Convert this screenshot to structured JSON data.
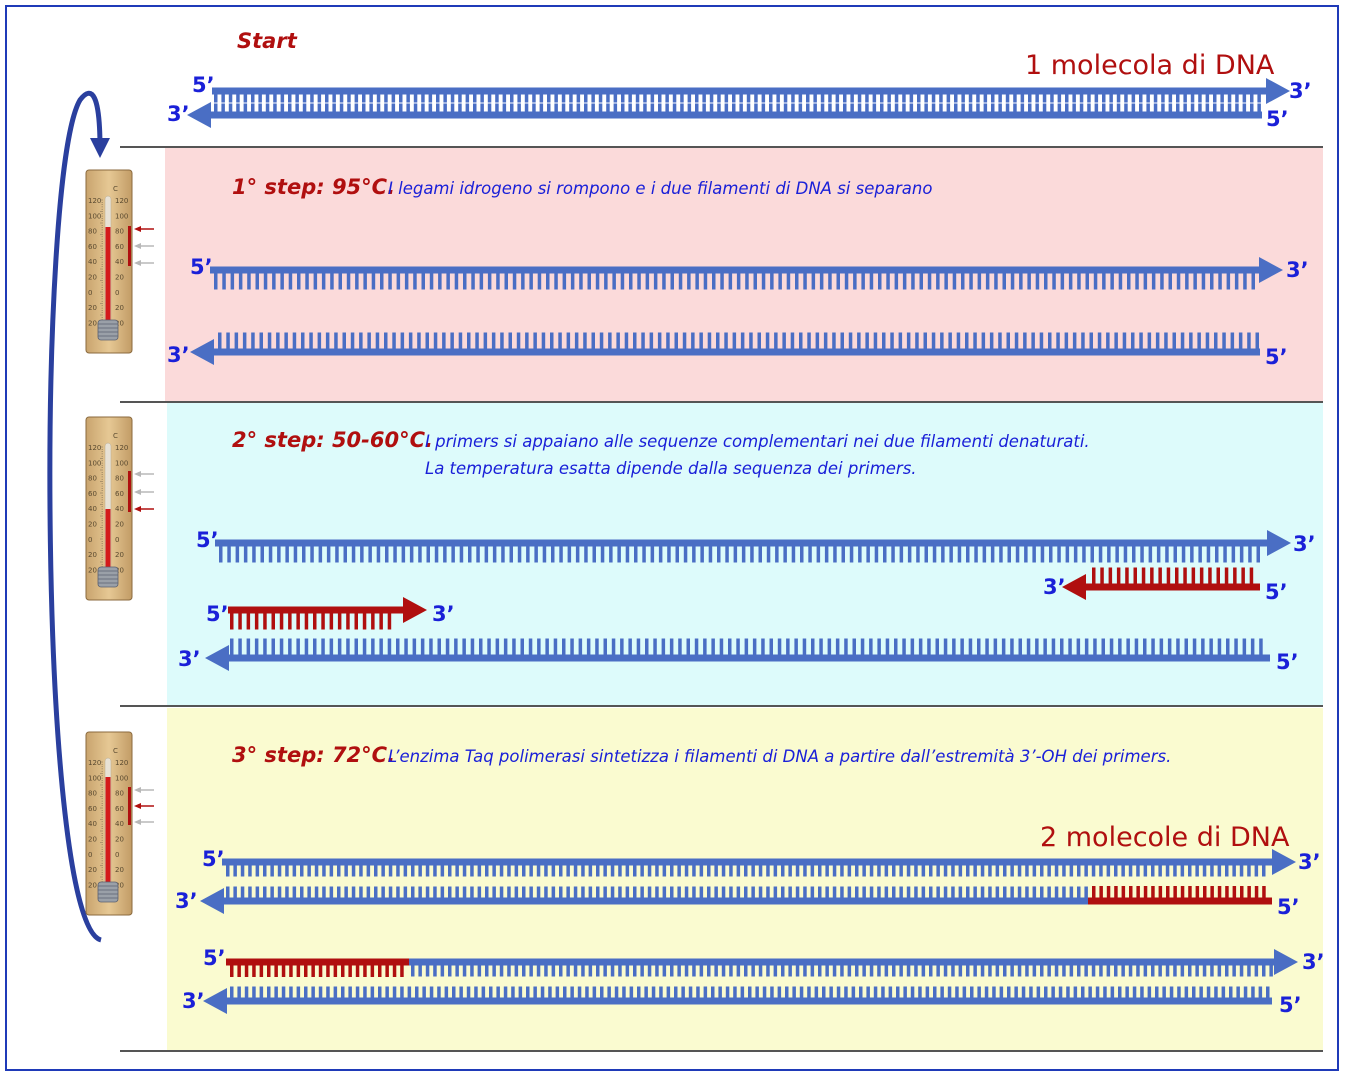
{
  "start_label": "Start",
  "molecule_labels": {
    "one": "1 molecola di DNA",
    "two": "2 molecole di DNA"
  },
  "end_labels": {
    "five_prime": "5’",
    "three_prime": "3’"
  },
  "steps": [
    {
      "title": "1° step: 95°C.",
      "description": [
        "I legami idrogeno si rompono e i due filamenti di DNA si separano"
      ]
    },
    {
      "title": "2° step: 50-60°C.",
      "description": [
        "I primers si appaiano alle sequenze complementari nei due filamenti denaturati.",
        "La temperatura esatta dipende dalla sequenza dei primers."
      ]
    },
    {
      "title": "3° step: 72°C.",
      "description": [
        "L’enzima Taq polimerasi sintetizza i filamenti di DNA a partire dall’estremità 3’-OH dei primers."
      ]
    }
  ],
  "thermometer": {
    "unit": "C",
    "scale_left": [
      "120",
      "100",
      "80",
      "60",
      "40",
      "20",
      "0",
      "20",
      "20"
    ],
    "scale_right": [
      "120",
      "100",
      "80",
      "60",
      "40",
      "20",
      "0",
      "20",
      "20"
    ]
  },
  "colors": {
    "dna_blue": "#4a6ec4",
    "primer_red": "#b00f0f",
    "label_blue": "#1a20d8",
    "title_red": "#b00f0f",
    "step1_bg": "#fbdada",
    "step2_bg": "#ddfbfb",
    "step3_bg": "#fafbd0",
    "frame": "#1f3ab8"
  }
}
